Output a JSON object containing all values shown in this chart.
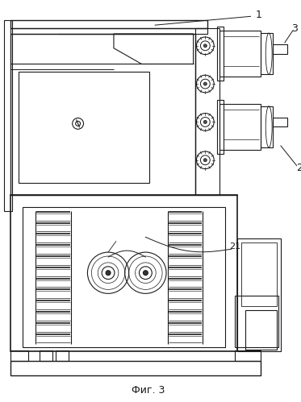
{
  "caption": "Фиг. 3",
  "bg_color": "#ffffff",
  "lc": "#1a1a1a",
  "label1": "1",
  "label2": "2",
  "label3": "3",
  "label21": "21",
  "fig_width": 3.73,
  "fig_height": 4.99,
  "dpi": 100
}
